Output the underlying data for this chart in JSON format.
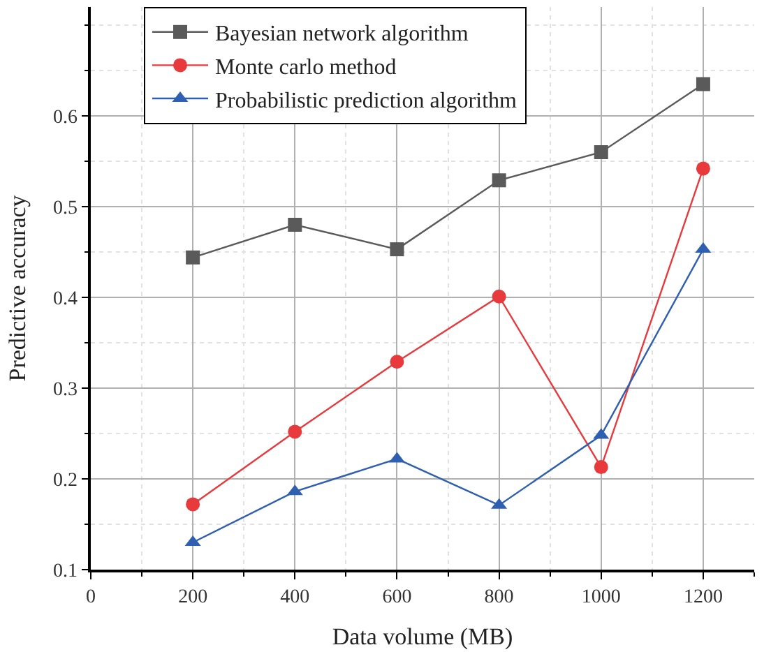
{
  "chart_data": {
    "type": "line",
    "xlabel": "Data volume (MB)",
    "ylabel": "Predictive accuracy",
    "x": [
      200,
      400,
      600,
      800,
      1000,
      1200
    ],
    "series": [
      {
        "name": "Bayesian network algorithm",
        "color": "#5a5a5a",
        "marker": "square",
        "values": [
          0.444,
          0.48,
          0.453,
          0.529,
          0.56,
          0.635
        ]
      },
      {
        "name": "Monte carlo method",
        "color": "#e8393c",
        "marker": "circle",
        "values": [
          0.172,
          0.252,
          0.329,
          0.401,
          0.213,
          0.542
        ]
      },
      {
        "name": "Probabilistic prediction algorithm",
        "color": "#2f5fb0",
        "marker": "triangle",
        "values": [
          0.13,
          0.186,
          0.222,
          0.171,
          0.248,
          0.453
        ]
      }
    ],
    "xlim": [
      0,
      1300
    ],
    "xticks": [
      0,
      200,
      400,
      600,
      800,
      1000,
      1200
    ],
    "ylim": [
      0.1,
      0.72
    ],
    "yticks": [
      0.1,
      0.2,
      0.3,
      0.4,
      0.5,
      0.6
    ],
    "grid": true,
    "legend": "top left",
    "line_style": "solid"
  }
}
